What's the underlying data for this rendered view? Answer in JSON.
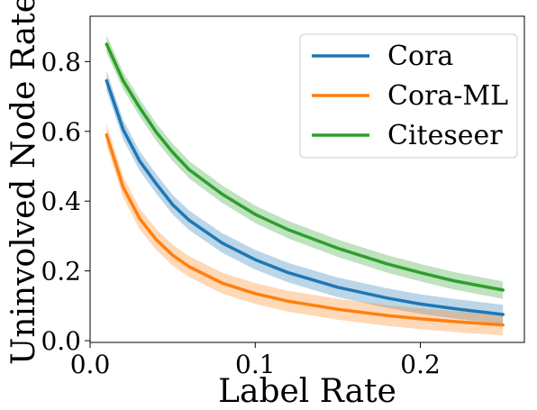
{
  "chart_data": {
    "type": "line",
    "title": "",
    "xlabel": "Label Rate",
    "ylabel": "Uninvolved Node Rate",
    "xlim": [
      0.0,
      0.263
    ],
    "ylim": [
      -0.005,
      0.93
    ],
    "x_ticks": [
      0.0,
      0.1,
      0.2
    ],
    "x_tick_labels": [
      "0.0",
      "0.1",
      "0.2"
    ],
    "y_ticks": [
      0.0,
      0.2,
      0.4,
      0.6,
      0.8
    ],
    "y_tick_labels": [
      "0.0",
      "0.2",
      "0.4",
      "0.6",
      "0.8"
    ],
    "grid": false,
    "legend_position": "top-right",
    "x": [
      0.01,
      0.02,
      0.03,
      0.04,
      0.05,
      0.06,
      0.08,
      0.1,
      0.12,
      0.15,
      0.18,
      0.2,
      0.22,
      0.25
    ],
    "series": [
      {
        "name": "Cora",
        "color": "#1f77b4",
        "values": [
          0.745,
          0.605,
          0.515,
          0.45,
          0.39,
          0.345,
          0.28,
          0.232,
          0.195,
          0.153,
          0.122,
          0.105,
          0.092,
          0.075
        ],
        "band": 0.028
      },
      {
        "name": "Cora-ML",
        "color": "#ff7f0e",
        "values": [
          0.59,
          0.44,
          0.35,
          0.29,
          0.245,
          0.212,
          0.165,
          0.135,
          0.113,
          0.09,
          0.072,
          0.063,
          0.055,
          0.045
        ],
        "band": 0.03
      },
      {
        "name": "Citeseer",
        "color": "#2ca02c",
        "values": [
          0.85,
          0.745,
          0.668,
          0.598,
          0.54,
          0.49,
          0.42,
          0.362,
          0.318,
          0.265,
          0.22,
          0.195,
          0.172,
          0.145
        ],
        "band": 0.025
      }
    ]
  }
}
